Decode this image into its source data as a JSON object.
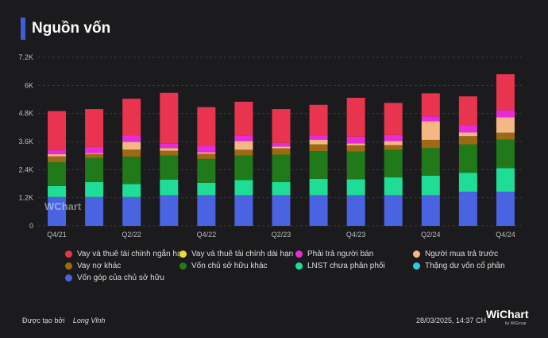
{
  "title": "Nguồn vốn",
  "watermark": "WChart",
  "footer": {
    "created_by_label": "Được tạo bởi",
    "author": "Long Vĩnh",
    "timestamp": "28/03/2025, 14:37 CH",
    "brand": "WiChart",
    "brand_sub": "by WiGroup"
  },
  "colors": {
    "background": "#1b1b1d",
    "accent": "#3f5ed6"
  },
  "chart_data": {
    "type": "bar",
    "stacked": true,
    "categories": [
      "Q4/21",
      "Q1/22",
      "Q2/22",
      "Q3/22",
      "Q4/22",
      "Q1/23",
      "Q2/23",
      "Q3/23",
      "Q4/23",
      "Q1/24",
      "Q2/24",
      "Q3/24",
      "Q4/24"
    ],
    "x_tick_labels": [
      "Q4/21",
      "",
      "Q2/22",
      "",
      "Q4/22",
      "",
      "Q2/23",
      "",
      "Q4/23",
      "",
      "Q2/24",
      "",
      "Q4/24"
    ],
    "y_ticks": [
      0,
      1200,
      2400,
      3600,
      4800,
      6000,
      7200
    ],
    "y_tick_labels": [
      "0",
      "1.2K",
      "2.4K",
      "3.6K",
      "4.8K",
      "6K",
      "7.2K"
    ],
    "ylim": [
      0,
      7200
    ],
    "legend_position": "bottom",
    "series": [
      {
        "name": "Vốn góp của chủ sở hữu",
        "color": "#4a63e0",
        "values": [
          1230,
          1230,
          1230,
          1310,
          1310,
          1310,
          1310,
          1310,
          1310,
          1310,
          1310,
          1460,
          1460
        ]
      },
      {
        "name": "Thặng dư vốn cổ phần",
        "color": "#2fc9e6",
        "values": [
          0,
          0,
          0,
          0,
          0,
          0,
          0,
          0,
          0,
          0,
          0,
          0,
          0
        ]
      },
      {
        "name": "LNST chưa phân phối",
        "color": "#1fdc96",
        "values": [
          470,
          640,
          560,
          660,
          530,
          650,
          560,
          700,
          680,
          760,
          830,
          810,
          1010
        ]
      },
      {
        "name": "Vốn chủ sở hữu khác",
        "color": "#207a1a",
        "values": [
          1020,
          1030,
          1170,
          1030,
          1020,
          1040,
          1170,
          1180,
          1180,
          1180,
          1180,
          1210,
          1210
        ]
      },
      {
        "name": "Vay nợ khác",
        "color": "#9e6914",
        "values": [
          250,
          170,
          300,
          210,
          220,
          250,
          270,
          290,
          270,
          200,
          350,
          350,
          300
        ]
      },
      {
        "name": "Người mua trả trước",
        "color": "#f5b885",
        "values": [
          90,
          40,
          330,
          110,
          60,
          370,
          80,
          200,
          80,
          170,
          800,
          160,
          660
        ]
      },
      {
        "name": "Vay và thuê tài chính dài hạn",
        "color": "#f0dc2a",
        "values": [
          0,
          0,
          0,
          0,
          0,
          0,
          0,
          0,
          0,
          0,
          0,
          0,
          0
        ]
      },
      {
        "name": "Phải trả người bán",
        "color": "#e82bd8",
        "values": [
          170,
          260,
          280,
          190,
          280,
          220,
          150,
          180,
          290,
          260,
          210,
          310,
          290
        ]
      },
      {
        "name": "Vay và thuê tài chính ngắn hạn",
        "color": "#e8344f",
        "values": [
          1670,
          1620,
          1560,
          2170,
          1650,
          1460,
          1450,
          1310,
          1660,
          1370,
          980,
          1230,
          1550
        ]
      }
    ],
    "legend_order": [
      "Vay và thuê tài chính ngắn hạn",
      "Vay và thuê tài chính dài hạn",
      "Phải trả người bán",
      "Người mua trả trước",
      "Vay nợ khác",
      "Vốn chủ sở hữu khác",
      "LNST chưa phân phối",
      "Thặng dư vốn cổ phần",
      "Vốn góp của chủ sở hữu"
    ]
  }
}
